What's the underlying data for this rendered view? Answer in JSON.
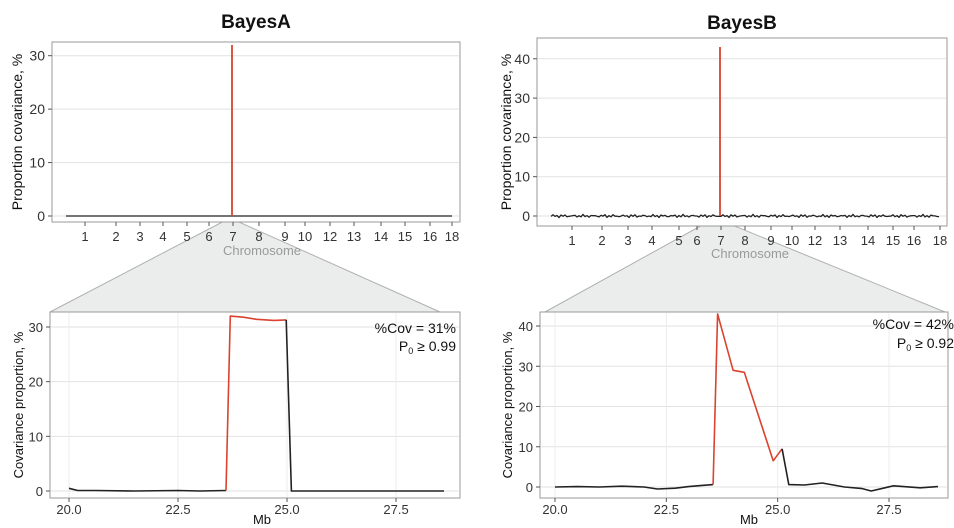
{
  "chart_data": [
    {
      "id": "bayesA_top",
      "type": "line",
      "title": "BayesA",
      "xlabel": "Chromosome",
      "ylabel": "Proportion covariance, %",
      "ylim": [
        0,
        32
      ],
      "yticks": [
        0,
        10,
        20,
        30
      ],
      "xticks": [
        "1",
        "2",
        "3",
        "4",
        "5",
        "6",
        "7",
        "8",
        "9",
        "10",
        "12",
        "13",
        "14",
        "15",
        "16",
        "18"
      ],
      "xlim": [
        0.5,
        18.5
      ],
      "baseline": 0,
      "peak": {
        "x": 7.0,
        "y": 32,
        "color": "#d9432f"
      },
      "line_color": "#222222",
      "grid": true
    },
    {
      "id": "bayesB_top",
      "type": "line",
      "title": "BayesB",
      "xlabel": "Chromosome",
      "ylabel": "Proportion covariance, %",
      "ylim": [
        0,
        43
      ],
      "yticks": [
        0,
        10,
        20,
        30,
        40
      ],
      "xticks": [
        "1",
        "2",
        "3",
        "4",
        "5",
        "6",
        "7",
        "8",
        "9",
        "10",
        "12",
        "13",
        "14",
        "15",
        "16",
        "18"
      ],
      "xlim": [
        0.5,
        18.5
      ],
      "baseline": 0,
      "peak": {
        "x": 7.0,
        "y": 43,
        "color": "#d9432f"
      },
      "line_color": "#222222",
      "grid": true
    },
    {
      "id": "bayesA_zoom",
      "type": "line",
      "title": "",
      "xlabel": "Mb",
      "ylabel": "Covariance proportion, %",
      "xlim": [
        20.0,
        28.8
      ],
      "ylim": [
        0,
        32.5
      ],
      "xticks": [
        "20.0",
        "22.5",
        "25.0",
        "27.5"
      ],
      "xtick_values": [
        20.0,
        22.5,
        25.0,
        27.5
      ],
      "yticks": [
        0,
        10,
        20,
        30
      ],
      "annotation": [
        "%Cov = 31%",
        "P0 ≥ 0.99"
      ],
      "series": [
        {
          "color": "#222222",
          "x": [
            20.0,
            20.2,
            20.6,
            21.5,
            22.5,
            23.0,
            23.6
          ],
          "y": [
            0.5,
            0.1,
            0.1,
            0.0,
            0.1,
            0.0,
            0.1
          ]
        },
        {
          "color": "#d9432f",
          "x": [
            23.6,
            23.7,
            24.0,
            24.3,
            24.7,
            24.98
          ],
          "y": [
            0.1,
            32.0,
            31.8,
            31.4,
            31.2,
            31.3
          ]
        },
        {
          "color": "#222222",
          "x": [
            24.98,
            25.1,
            26.0,
            27.0,
            28.6
          ],
          "y": [
            31.3,
            0.0,
            0.0,
            0.0,
            0.0
          ]
        }
      ],
      "grid": true
    },
    {
      "id": "bayesB_zoom",
      "type": "line",
      "title": "",
      "xlabel": "Mb",
      "ylabel": "Covariance proportion, %",
      "xlim": [
        19.8,
        28.8
      ],
      "ylim": [
        -1.5,
        45
      ],
      "xticks": [
        "20.0",
        "22.5",
        "25.0",
        "27.5"
      ],
      "xtick_values": [
        20.0,
        22.5,
        25.0,
        27.5
      ],
      "yticks": [
        0,
        10,
        20,
        30,
        40
      ],
      "annotation": [
        "%Cov = 42%",
        "P0 ≥ 0.92"
      ],
      "series": [
        {
          "color": "#222222",
          "x": [
            20.0,
            20.5,
            21.0,
            21.5,
            22.0,
            22.3,
            22.7,
            23.0,
            23.3,
            23.55
          ],
          "y": [
            0.0,
            0.1,
            0.0,
            0.2,
            0.0,
            -0.5,
            -0.3,
            0.1,
            0.4,
            0.6
          ]
        },
        {
          "color": "#d9432f",
          "x": [
            23.55,
            23.65,
            24.0,
            24.25,
            24.9,
            25.1
          ],
          "y": [
            0.6,
            43.0,
            29.0,
            28.5,
            6.5,
            9.5
          ]
        },
        {
          "color": "#222222",
          "x": [
            25.1,
            25.25,
            25.6,
            26.0,
            26.5,
            26.9,
            27.1,
            27.6,
            28.2,
            28.6
          ],
          "y": [
            9.5,
            0.6,
            0.5,
            1.0,
            0.0,
            -0.4,
            -1.0,
            0.3,
            -0.2,
            0.1
          ]
        }
      ],
      "grid": true
    }
  ]
}
